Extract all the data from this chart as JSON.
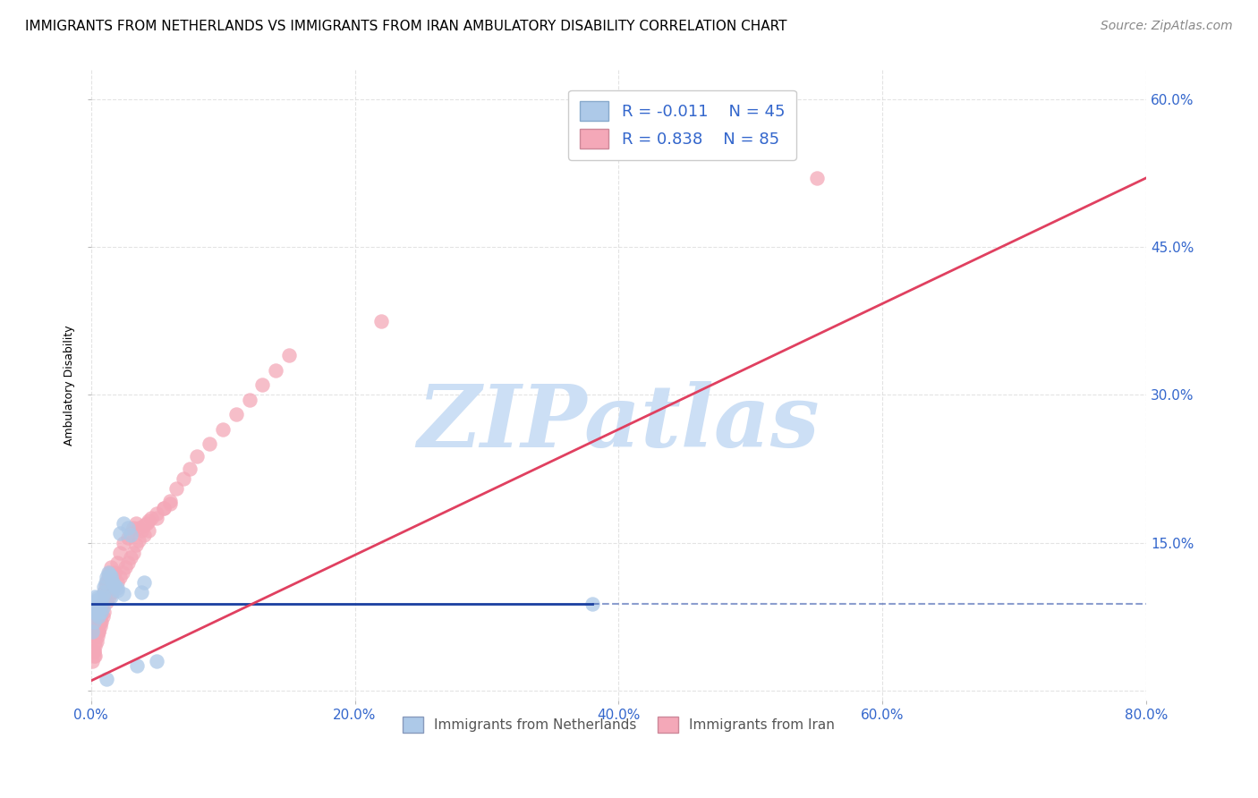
{
  "title": "IMMIGRANTS FROM NETHERLANDS VS IMMIGRANTS FROM IRAN AMBULATORY DISABILITY CORRELATION CHART",
  "source": "Source: ZipAtlas.com",
  "ylabel": "Ambulatory Disability",
  "xlim": [
    0.0,
    0.8
  ],
  "ylim": [
    -0.01,
    0.63
  ],
  "xticks": [
    0.0,
    0.2,
    0.4,
    0.6,
    0.8
  ],
  "yticks": [
    0.0,
    0.15,
    0.3,
    0.45,
    0.6
  ],
  "xticklabels": [
    "0.0%",
    "20.0%",
    "40.0%",
    "60.0%",
    "80.0%"
  ],
  "yticklabels_right": [
    "",
    "15.0%",
    "30.0%",
    "45.0%",
    "60.0%"
  ],
  "legend_netherlands": "Immigrants from Netherlands",
  "legend_iran": "Immigrants from Iran",
  "R_netherlands": -0.011,
  "N_netherlands": 45,
  "R_iran": 0.838,
  "N_iran": 85,
  "color_netherlands": "#adc9e8",
  "color_iran": "#f4a8b8",
  "line_color_netherlands": "#1a3fa0",
  "line_color_iran": "#e04060",
  "watermark": "ZIPatlas",
  "watermark_color": "#ccdff5",
  "nl_line_y0": 0.088,
  "nl_line_y1": 0.088,
  "ir_line_x0": 0.0,
  "ir_line_y0": 0.01,
  "ir_line_x1": 0.8,
  "ir_line_y1": 0.52,
  "netherlands_x": [
    0.001,
    0.002,
    0.002,
    0.003,
    0.003,
    0.003,
    0.004,
    0.004,
    0.004,
    0.005,
    0.005,
    0.005,
    0.006,
    0.006,
    0.006,
    0.007,
    0.007,
    0.008,
    0.008,
    0.009,
    0.009,
    0.01,
    0.01,
    0.011,
    0.012,
    0.013,
    0.014,
    0.015,
    0.016,
    0.017,
    0.018,
    0.02,
    0.022,
    0.025,
    0.028,
    0.03,
    0.015,
    0.02,
    0.025,
    0.038,
    0.04,
    0.38,
    0.05,
    0.035,
    0.012
  ],
  "netherlands_y": [
    0.06,
    0.07,
    0.08,
    0.085,
    0.09,
    0.095,
    0.088,
    0.082,
    0.092,
    0.086,
    0.078,
    0.094,
    0.083,
    0.089,
    0.075,
    0.087,
    0.093,
    0.08,
    0.091,
    0.084,
    0.096,
    0.1,
    0.105,
    0.11,
    0.115,
    0.12,
    0.118,
    0.116,
    0.112,
    0.108,
    0.106,
    0.104,
    0.16,
    0.17,
    0.165,
    0.158,
    0.095,
    0.102,
    0.098,
    0.1,
    0.11,
    0.088,
    0.03,
    0.025,
    0.012
  ],
  "iran_x": [
    0.001,
    0.002,
    0.002,
    0.003,
    0.003,
    0.003,
    0.004,
    0.004,
    0.004,
    0.005,
    0.005,
    0.005,
    0.006,
    0.006,
    0.007,
    0.007,
    0.008,
    0.008,
    0.009,
    0.01,
    0.01,
    0.011,
    0.012,
    0.013,
    0.014,
    0.015,
    0.016,
    0.017,
    0.018,
    0.02,
    0.022,
    0.025,
    0.028,
    0.03,
    0.032,
    0.034,
    0.036,
    0.038,
    0.04,
    0.042,
    0.044,
    0.046,
    0.05,
    0.055,
    0.06,
    0.002,
    0.003,
    0.004,
    0.005,
    0.006,
    0.007,
    0.008,
    0.009,
    0.01,
    0.012,
    0.014,
    0.016,
    0.018,
    0.02,
    0.022,
    0.024,
    0.026,
    0.028,
    0.03,
    0.032,
    0.034,
    0.036,
    0.04,
    0.044,
    0.05,
    0.055,
    0.06,
    0.065,
    0.07,
    0.075,
    0.08,
    0.09,
    0.1,
    0.11,
    0.12,
    0.13,
    0.14,
    0.15,
    0.22,
    0.55
  ],
  "iran_y": [
    0.03,
    0.035,
    0.04,
    0.045,
    0.05,
    0.055,
    0.06,
    0.065,
    0.07,
    0.075,
    0.08,
    0.085,
    0.065,
    0.06,
    0.07,
    0.075,
    0.08,
    0.085,
    0.09,
    0.095,
    0.1,
    0.105,
    0.11,
    0.115,
    0.12,
    0.125,
    0.115,
    0.118,
    0.12,
    0.13,
    0.14,
    0.15,
    0.155,
    0.16,
    0.165,
    0.17,
    0.165,
    0.162,
    0.168,
    0.17,
    0.172,
    0.175,
    0.18,
    0.185,
    0.19,
    0.04,
    0.035,
    0.05,
    0.055,
    0.06,
    0.065,
    0.07,
    0.075,
    0.08,
    0.09,
    0.095,
    0.1,
    0.105,
    0.11,
    0.115,
    0.12,
    0.125,
    0.13,
    0.135,
    0.14,
    0.148,
    0.152,
    0.158,
    0.162,
    0.175,
    0.185,
    0.192,
    0.205,
    0.215,
    0.225,
    0.238,
    0.25,
    0.265,
    0.28,
    0.295,
    0.31,
    0.325,
    0.34,
    0.375,
    0.52
  ],
  "background_color": "#ffffff",
  "grid_color": "#e0e0e0",
  "title_fontsize": 11,
  "axis_label_fontsize": 9,
  "tick_fontsize": 11,
  "legend_fontsize": 13,
  "source_fontsize": 10
}
